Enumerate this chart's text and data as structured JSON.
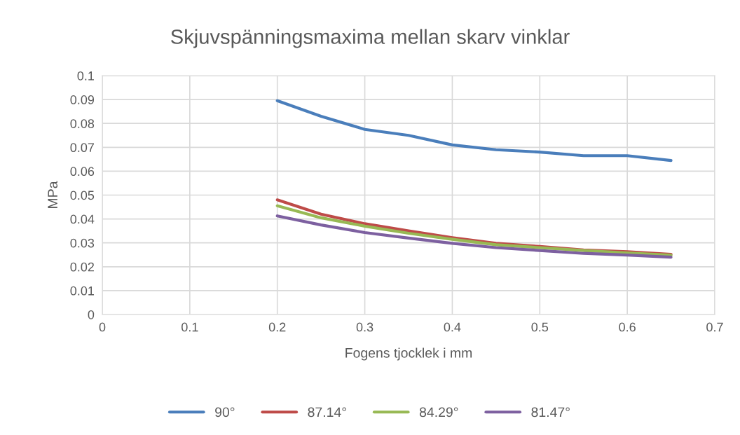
{
  "chart_data": {
    "type": "line",
    "title": "Skjuvspänningsmaxima mellan skarv vinklar",
    "xlabel": "Fogens tjocklek i mm",
    "ylabel": "MPa",
    "x": [
      0.2,
      0.25,
      0.3,
      0.35,
      0.4,
      0.45,
      0.5,
      0.55,
      0.6,
      0.65
    ],
    "series": [
      {
        "name": "90°",
        "color": "#4a7ebb",
        "values": [
          0.0895,
          0.083,
          0.0775,
          0.075,
          0.071,
          0.069,
          0.068,
          0.0665,
          0.0665,
          0.0645
        ]
      },
      {
        "name": "87.14°",
        "color": "#be4b48",
        "values": [
          0.048,
          0.042,
          0.038,
          0.035,
          0.0322,
          0.0298,
          0.0285,
          0.027,
          0.0263,
          0.0252
        ]
      },
      {
        "name": "84.29°",
        "color": "#98b954",
        "values": [
          0.0455,
          0.0405,
          0.037,
          0.034,
          0.0315,
          0.0292,
          0.028,
          0.0268,
          0.0258,
          0.0248
        ]
      },
      {
        "name": "81.47°",
        "color": "#7d60a0",
        "values": [
          0.0413,
          0.0375,
          0.0343,
          0.032,
          0.0298,
          0.028,
          0.0268,
          0.0256,
          0.0249,
          0.024
        ]
      }
    ],
    "xlim": [
      0,
      0.7
    ],
    "xticks": [
      0,
      0.1,
      0.2,
      0.3,
      0.4,
      0.5,
      0.6,
      0.7
    ],
    "ylim": [
      0,
      0.1
    ],
    "yticks": [
      0,
      0.01,
      0.02,
      0.03,
      0.04,
      0.05,
      0.06,
      0.07,
      0.08,
      0.09,
      0.1
    ],
    "grid": true,
    "legend": "bottom",
    "marker": "none",
    "line_style": "solid"
  }
}
